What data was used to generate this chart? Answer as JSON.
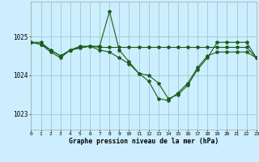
{
  "title": "Graphe pression niveau de la mer (hPa)",
  "bg_color": "#cceeff",
  "grid_color": "#99cccc",
  "line_color": "#1a5c1a",
  "xlim": [
    0,
    23
  ],
  "ylim": [
    1022.6,
    1025.9
  ],
  "yticks": [
    1023,
    1024,
    1025
  ],
  "xticks": [
    0,
    1,
    2,
    3,
    4,
    5,
    6,
    7,
    8,
    9,
    10,
    11,
    12,
    13,
    14,
    15,
    16,
    17,
    18,
    19,
    20,
    21,
    22,
    23
  ],
  "line1_y": [
    1024.85,
    1024.85,
    1024.65,
    1024.5,
    1024.65,
    1024.75,
    1024.75,
    1024.75,
    1025.65,
    1024.65,
    1024.35,
    1024.05,
    1024.0,
    1023.8,
    1023.4,
    1023.5,
    1023.75,
    1024.15,
    1024.45,
    1024.85,
    1024.85,
    1024.85,
    1024.85,
    1024.45
  ],
  "line2_y": [
    1024.85,
    1024.8,
    1024.65,
    1024.5,
    1024.65,
    1024.72,
    1024.75,
    1024.72,
    1024.72,
    1024.72,
    1024.72,
    1024.72,
    1024.72,
    1024.72,
    1024.72,
    1024.72,
    1024.72,
    1024.72,
    1024.72,
    1024.72,
    1024.72,
    1024.72,
    1024.72,
    1024.45
  ],
  "line3_y": [
    1024.85,
    1024.8,
    1024.6,
    1024.45,
    1024.65,
    1024.7,
    1024.75,
    1024.65,
    1024.6,
    1024.45,
    1024.3,
    1024.05,
    1023.85,
    1023.4,
    1023.35,
    1023.55,
    1023.8,
    1024.2,
    1024.5,
    1024.6,
    1024.6,
    1024.6,
    1024.6,
    1024.45
  ]
}
